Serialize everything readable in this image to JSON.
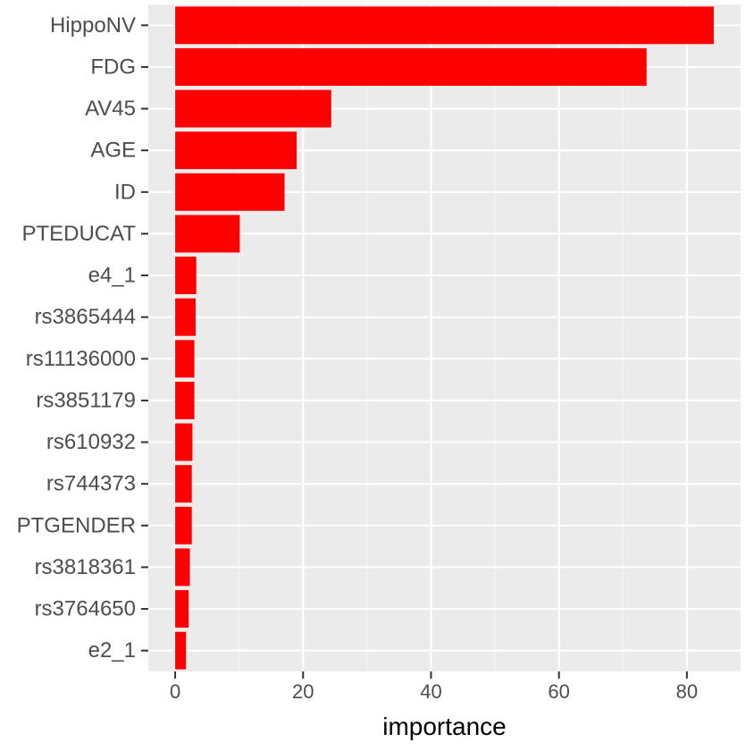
{
  "chart_data": {
    "type": "bar",
    "orientation": "horizontal",
    "categories": [
      "HippoNV",
      "FDG",
      "AV45",
      "AGE",
      "ID",
      "PTEDUCAT",
      "e4_1",
      "rs3865444",
      "rs11136000",
      "rs3851179",
      "rs610932",
      "rs744373",
      "PTGENDER",
      "rs3818361",
      "rs3764650",
      "e2_1"
    ],
    "values": [
      84.2,
      73.7,
      24.4,
      19.0,
      17.1,
      10.1,
      3.3,
      3.2,
      3.0,
      3.0,
      2.7,
      2.6,
      2.6,
      2.3,
      2.1,
      1.7
    ],
    "xlabel": "importance",
    "ylabel": "",
    "title": "",
    "xlim": [
      -4.2,
      88.4
    ],
    "x_ticks": [
      0,
      20,
      40,
      60,
      80
    ],
    "x_tick_labels": [
      "0",
      "20",
      "40",
      "60",
      "80"
    ],
    "grid": true,
    "colors": {
      "bar": "#ff0000",
      "panel": "#ebebeb",
      "grid_major": "#ffffff",
      "grid_minor": "#f5f5f5",
      "tick_text": "#4d4d4d",
      "axis_title": "#000000"
    }
  }
}
